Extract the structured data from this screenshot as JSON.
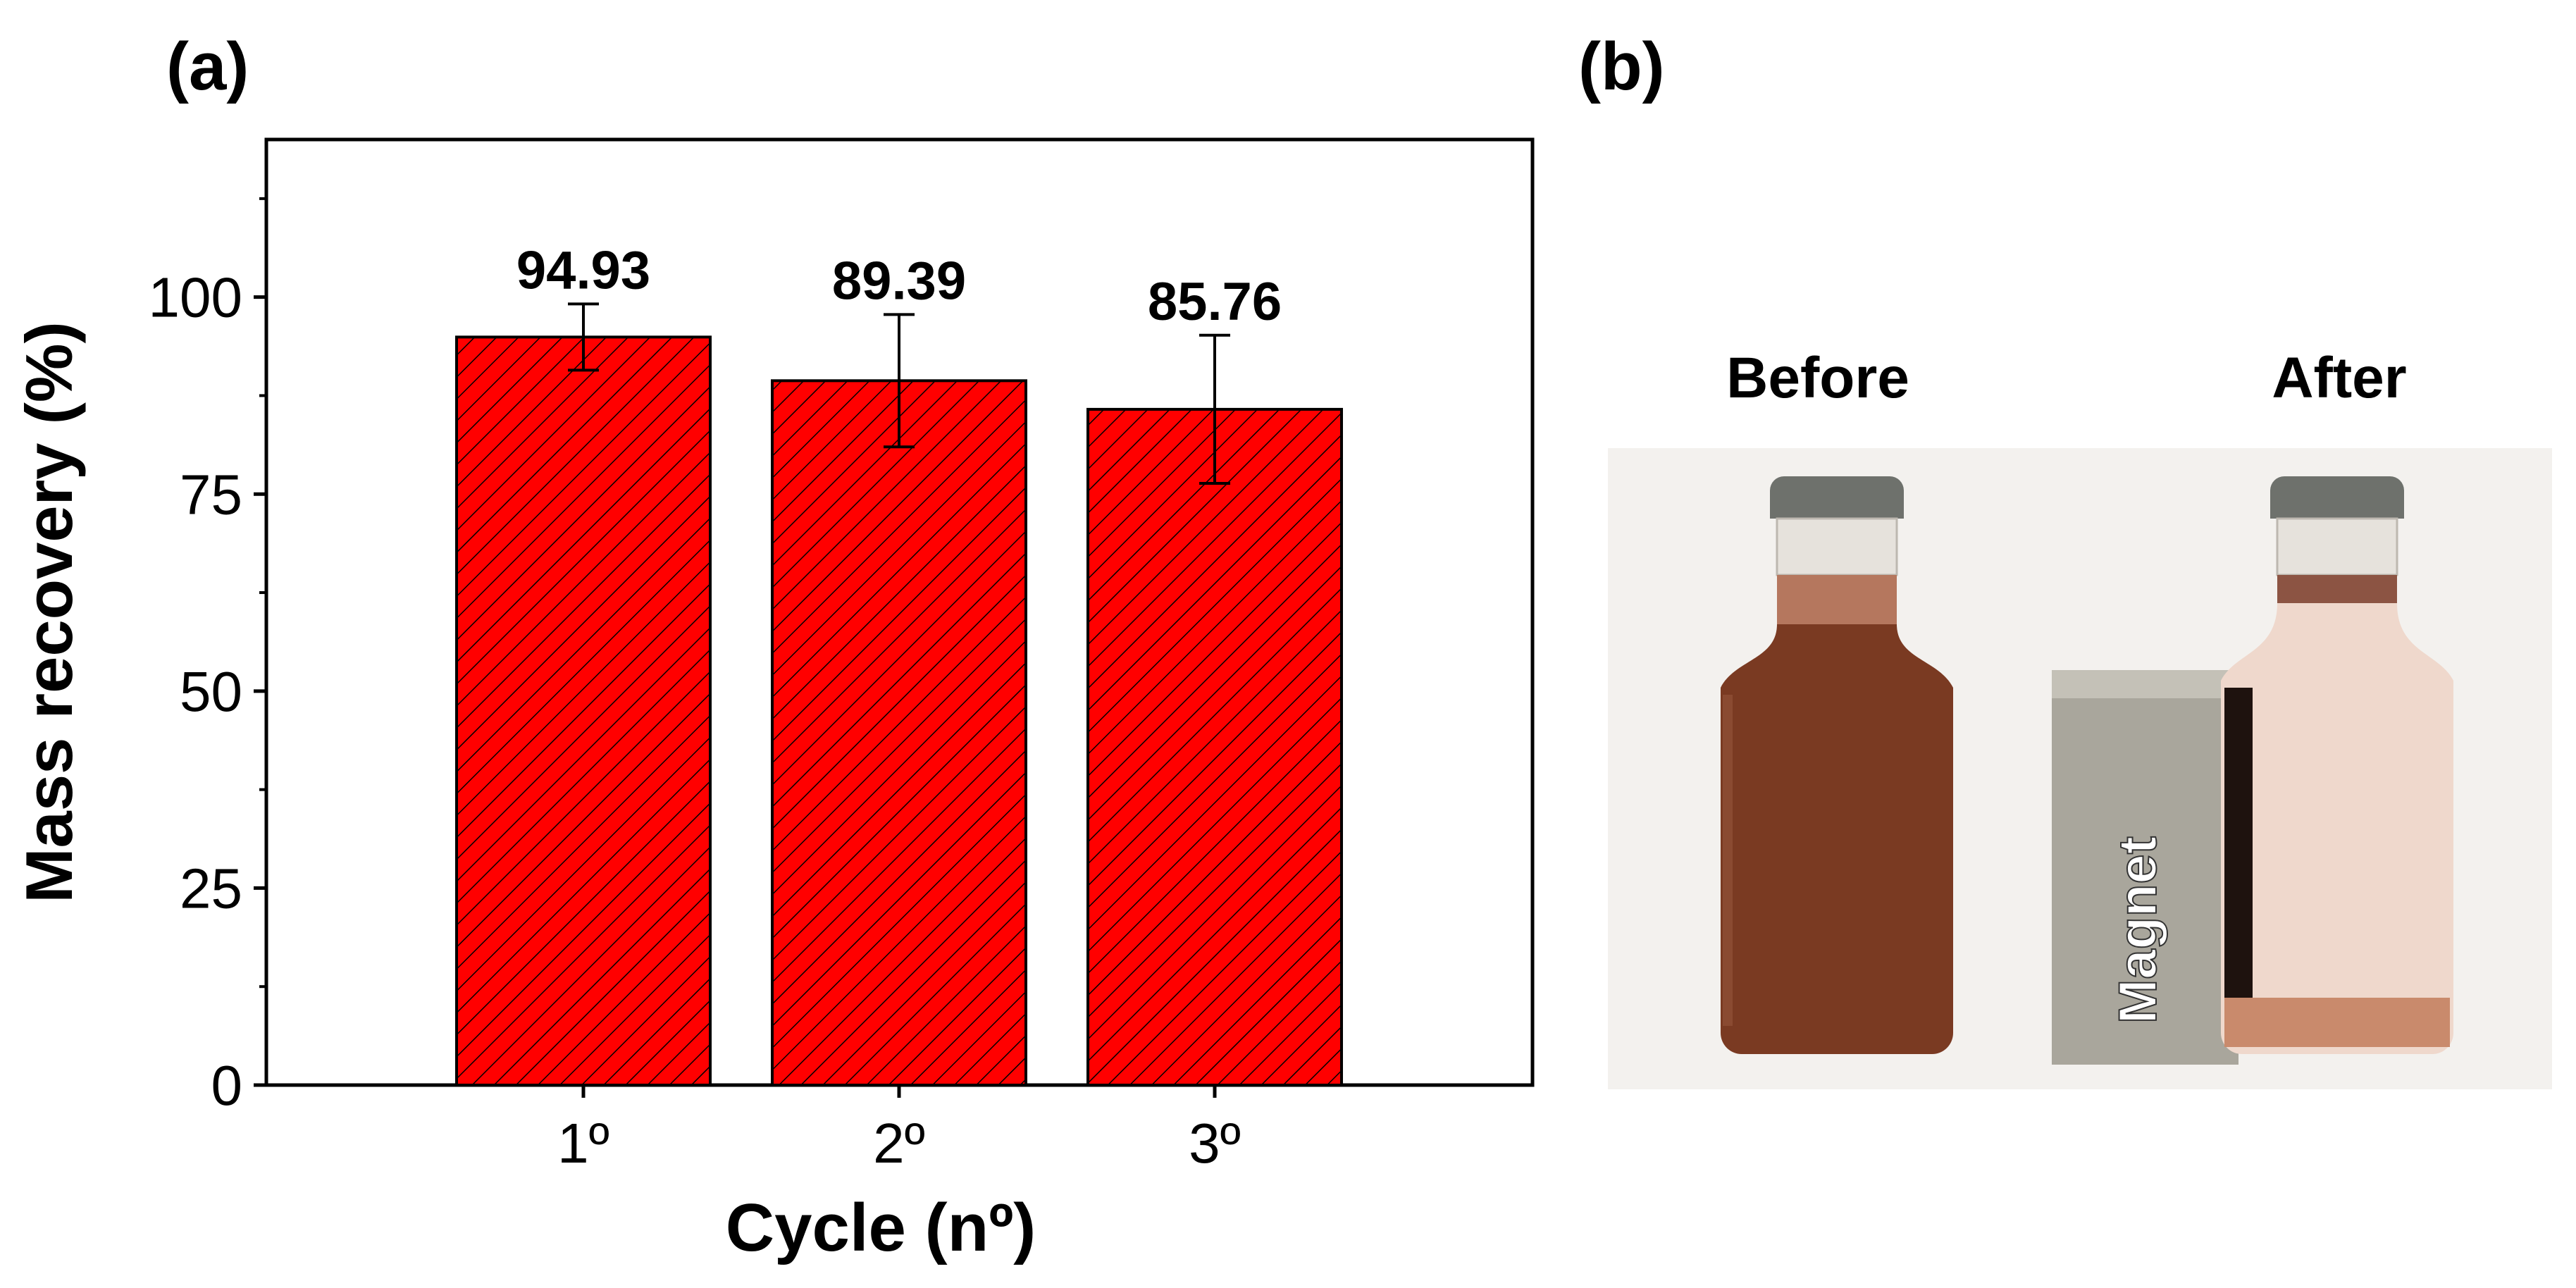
{
  "panels": {
    "a": "(a)",
    "b": "(b)"
  },
  "chart_data": {
    "type": "bar",
    "categories": [
      "1º",
      "2º",
      "3º"
    ],
    "values": [
      94.93,
      89.39,
      85.76
    ],
    "errors": [
      4.2,
      8.4,
      9.4
    ],
    "value_labels": [
      "94.93",
      "89.39",
      "85.76"
    ],
    "xlabel": "Cycle (nº)",
    "ylabel": "Mass recovery (%)",
    "ylim": [
      0,
      120
    ],
    "yticks": [
      0,
      25,
      50,
      75,
      100
    ],
    "yticks_labels": [
      "0",
      "25",
      "50",
      "75",
      "100"
    ],
    "bar_color": "#ff0000",
    "hatch": "diagonal",
    "grid": false
  },
  "photos": {
    "before_title": "Before",
    "after_title": "After",
    "magnet_label": "Magnet",
    "colors": {
      "background": "#f3f1ee",
      "cap": "#6e716c",
      "liquid_before": "#7a3a22",
      "liquid_after": "#efd8cc",
      "sediment": "#c98a6c",
      "magnet": "#a9a69c",
      "magnet_label": "#ffffff"
    }
  }
}
